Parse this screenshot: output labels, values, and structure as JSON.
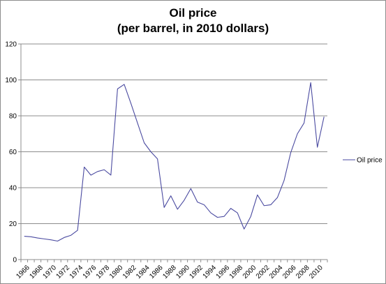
{
  "chart_data": {
    "type": "line",
    "title": "Oil price",
    "subtitle": "(per barrel, in 2010 dollars)",
    "xlabel": "",
    "ylabel": "",
    "ylim": [
      0,
      120
    ],
    "yticks": [
      0,
      20,
      40,
      60,
      80,
      100,
      120
    ],
    "grid": true,
    "legend_position": "right",
    "x": [
      1966,
      1967,
      1968,
      1969,
      1970,
      1971,
      1972,
      1973,
      1974,
      1975,
      1976,
      1977,
      1978,
      1979,
      1980,
      1981,
      1982,
      1983,
      1984,
      1985,
      1986,
      1987,
      1988,
      1989,
      1990,
      1991,
      1992,
      1993,
      1994,
      1995,
      1996,
      1997,
      1998,
      1999,
      2000,
      2001,
      2002,
      2003,
      2004,
      2005,
      2006,
      2007,
      2008,
      2009,
      2010,
      2011
    ],
    "xtick_labels": [
      "1966",
      "1968",
      "1970",
      "1972",
      "1974",
      "1976",
      "1978",
      "1980",
      "1982",
      "1984",
      "1986",
      "1988",
      "1990",
      "1992",
      "1994",
      "1996",
      "1998",
      "2000",
      "2002",
      "2004",
      "2006",
      "2008",
      "2010"
    ],
    "series": [
      {
        "name": "Oil price",
        "color": "#4a4aa0",
        "values": [
          13,
          12.7,
          12,
          11.5,
          11,
          10.3,
          12.3,
          13.5,
          16.3,
          51.5,
          47,
          49,
          50,
          47,
          95,
          97.5,
          87,
          76,
          65,
          60,
          56,
          29,
          35.5,
          28,
          33,
          39.5,
          32,
          30.5,
          26,
          23.5,
          24,
          28.5,
          26,
          17,
          24,
          36,
          30,
          30.5,
          34.5,
          44,
          59.5,
          70,
          76,
          98.5,
          62.5,
          79.5
        ]
      }
    ]
  }
}
